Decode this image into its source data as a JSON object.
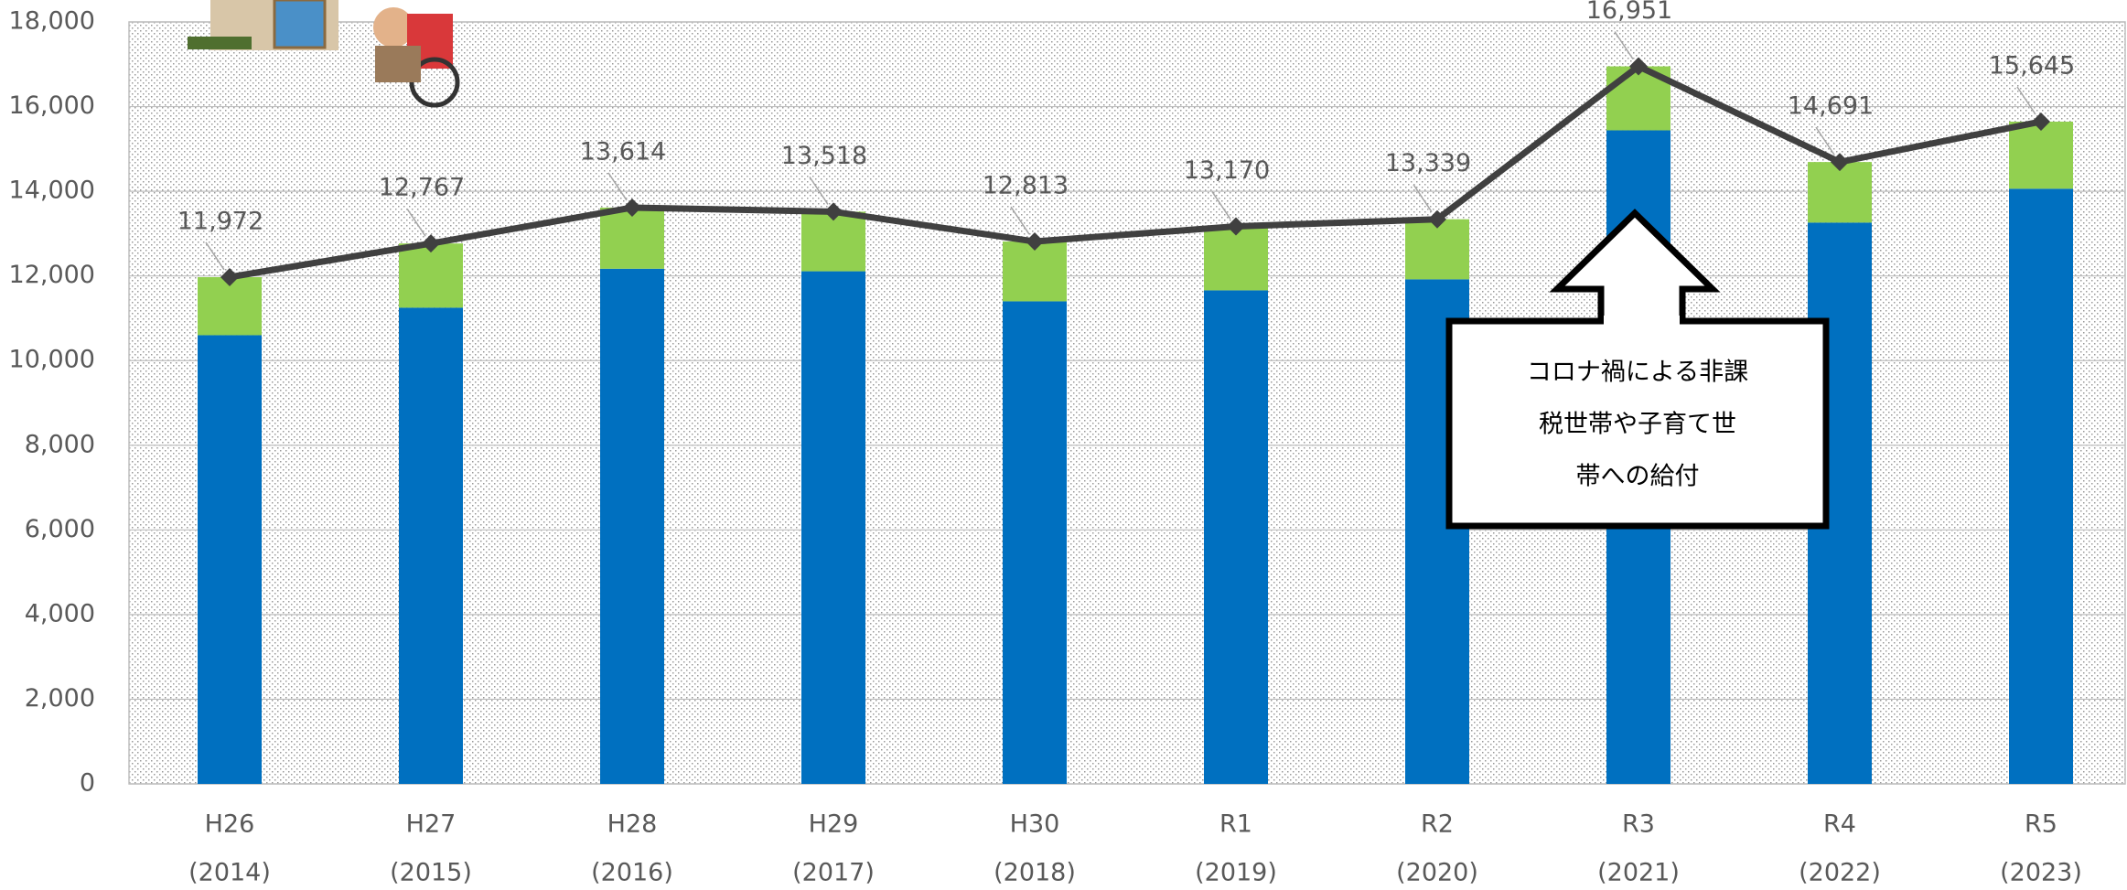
{
  "chart_data": {
    "type": "stacked-bar-line",
    "categories": [
      [
        "H26",
        "(2014)"
      ],
      [
        "H27",
        "(2015)"
      ],
      [
        "H28",
        "(2016)"
      ],
      [
        "H29",
        "(2017)"
      ],
      [
        "H30",
        "(2018)"
      ],
      [
        "R1",
        "(2019)"
      ],
      [
        "R2",
        "(2020)"
      ],
      [
        "R3",
        "(2021)"
      ],
      [
        "R4",
        "(2022)"
      ],
      [
        "R5",
        "(2023)"
      ]
    ],
    "series": [
      {
        "color": "#0070c0",
        "values": [
          10600,
          11250,
          12170,
          12110,
          11400,
          11660,
          11920,
          15440,
          13260,
          14060
        ]
      },
      {
        "color": "#92d050",
        "values": [
          1372,
          1517,
          1444,
          1408,
          1413,
          1510,
          1419,
          1511,
          1431,
          1585
        ]
      }
    ],
    "line": {
      "color": "#404040",
      "values": [
        11972,
        12767,
        13614,
        13518,
        12813,
        13170,
        13339,
        16951,
        14691,
        15645
      ],
      "value_labels": [
        "11,972",
        "12,767",
        "13,614",
        "13,518",
        "12,813",
        "13,170",
        "13,339",
        "16,951",
        "14,691",
        "15,645"
      ]
    },
    "ylim": [
      0,
      18000
    ],
    "yticks": [
      0,
      {
        "value": 2000,
        "label": "2,000"
      },
      {
        "value": 4000,
        "label": "4,000"
      },
      {
        "value": 6000,
        "label": "6,000"
      },
      {
        "value": 8000,
        "label": "8,000"
      },
      {
        "value": 10000,
        "label": "10,000"
      },
      {
        "value": 12000,
        "label": "12,000"
      },
      {
        "value": 14000,
        "label": "14,000"
      },
      {
        "value": 16000,
        "label": "16,000"
      },
      {
        "value": 18000,
        "label": "18,000"
      }
    ],
    "grid": true,
    "annotation": [
      "コロナ禍による非課",
      "税世帯や子育て世",
      "帯への給付"
    ]
  }
}
